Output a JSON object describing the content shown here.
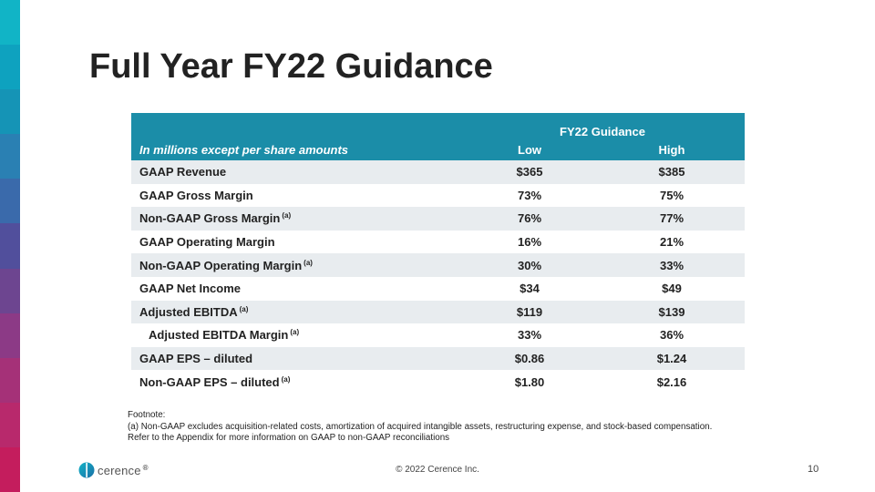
{
  "stripe_colors": [
    "#11b4c6",
    "#0ea2bf",
    "#1594b6",
    "#2a80b3",
    "#3a6aab",
    "#514f9c",
    "#6d4590",
    "#8c3a86",
    "#a53178",
    "#b8296c",
    "#c41d5d"
  ],
  "title": "Full Year FY22 Guidance",
  "table": {
    "header_color": "#1b8da8",
    "group_header": "FY22 Guidance",
    "row_label_header": "In millions except per share amounts",
    "col_low": "Low",
    "col_high": "High",
    "rows": [
      {
        "label": "GAAP Revenue",
        "note": "",
        "low": "$365",
        "high": "$385",
        "indent": false
      },
      {
        "label": "GAAP Gross Margin",
        "note": "",
        "low": "73%",
        "high": "75%",
        "indent": false
      },
      {
        "label": "Non-GAAP Gross Margin",
        "note": "(a)",
        "low": "76%",
        "high": "77%",
        "indent": false
      },
      {
        "label": "GAAP Operating Margin",
        "note": "",
        "low": "16%",
        "high": "21%",
        "indent": false
      },
      {
        "label": "Non-GAAP Operating Margin",
        "note": "(a)",
        "low": "30%",
        "high": "33%",
        "indent": false
      },
      {
        "label": "GAAP Net Income",
        "note": "",
        "low": "$34",
        "high": "$49",
        "indent": false
      },
      {
        "label": "Adjusted EBITDA",
        "note": "(a)",
        "low": "$119",
        "high": "$139",
        "indent": false
      },
      {
        "label": "Adjusted EBITDA Margin",
        "note": "(a)",
        "low": "33%",
        "high": "36%",
        "indent": true
      },
      {
        "label": "GAAP EPS – diluted",
        "note": "",
        "low": "$0.86",
        "high": "$1.24",
        "indent": false
      },
      {
        "label": "Non-GAAP EPS – diluted",
        "note": "(a)",
        "low": "$1.80",
        "high": "$2.16",
        "indent": false
      }
    ]
  },
  "footnote": {
    "heading": "Footnote:",
    "line1": "(a) Non-GAAP excludes acquisition-related costs, amortization of acquired intangible assets, restructuring expense, and stock-based compensation.",
    "line2": "Refer to the Appendix for more information on GAAP to non-GAAP reconciliations"
  },
  "logo": {
    "text": "cerence",
    "mark": "®",
    "icon": "cerence-logo-icon"
  },
  "copyright": "© 2022 Cerence Inc.",
  "page_number": "10"
}
